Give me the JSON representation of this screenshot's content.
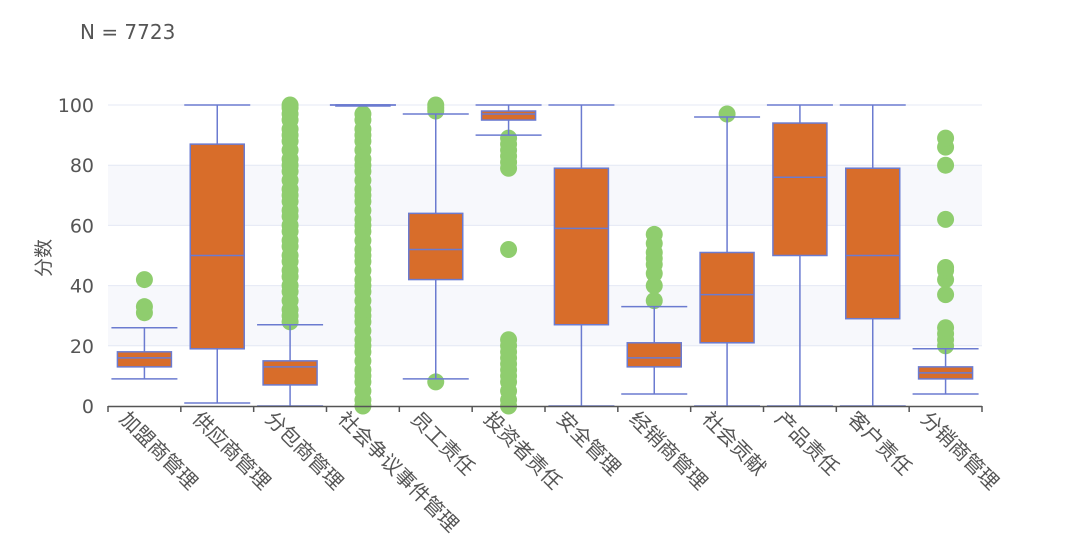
{
  "header": {
    "n_label": "N = 7723"
  },
  "chart_data": {
    "type": "boxplot",
    "ylabel": "分数",
    "ylim": [
      0,
      100
    ],
    "y_ticks": [
      0,
      20,
      40,
      60,
      80,
      100
    ],
    "grid": true,
    "colors": {
      "box_fill": "#d86d2a",
      "box_stroke": "#6b7bd0",
      "outlier": "#8fcd6e",
      "band": "#f7f8fc",
      "grid": "#e4e8f4",
      "axis": "#555555"
    },
    "categories": [
      "加盟商管理",
      "供应商管理",
      "分包商管理",
      "社会争议事件管理",
      "员工责任",
      "投资者责任",
      "安全管理",
      "经销商管理",
      "社会贡献",
      "产品责任",
      "客户责任",
      "分销商管理"
    ],
    "boxes": [
      {
        "min": 9,
        "q1": 13,
        "median": 16,
        "q3": 18,
        "max": 26,
        "outliers": [
          31,
          33,
          42
        ]
      },
      {
        "min": 1,
        "q1": 19,
        "median": 50,
        "q3": 87,
        "max": 100,
        "outliers": []
      },
      {
        "min": 0,
        "q1": 7,
        "median": 13,
        "q3": 15,
        "max": 27,
        "outliers": [
          28,
          30,
          32,
          35,
          38,
          40,
          43,
          45,
          48,
          50,
          53,
          55,
          58,
          60,
          63,
          65,
          68,
          70,
          72,
          75,
          78,
          80,
          82,
          85,
          88,
          90,
          92,
          95,
          97,
          99,
          100
        ]
      },
      {
        "min": 100,
        "q1": 100,
        "median": 100,
        "q3": 100,
        "max": 100,
        "outliers": [
          0,
          2,
          5,
          8,
          10,
          12,
          15,
          18,
          20,
          22,
          25,
          28,
          30,
          32,
          35,
          38,
          40,
          42,
          45,
          48,
          50,
          52,
          55,
          58,
          60,
          62,
          65,
          68,
          70,
          72,
          75,
          78,
          80,
          82,
          85,
          88,
          90,
          92,
          95,
          97
        ]
      },
      {
        "min": 9,
        "q1": 42,
        "median": 52,
        "q3": 64,
        "max": 97,
        "outliers": [
          8,
          98,
          99,
          100
        ]
      },
      {
        "min": 90,
        "q1": 95,
        "median": 97,
        "q3": 98,
        "max": 100,
        "outliers": [
          0,
          2,
          5,
          8,
          10,
          12,
          14,
          16,
          18,
          20,
          22,
          52,
          79,
          81,
          83,
          85,
          87,
          89
        ]
      },
      {
        "min": 0,
        "q1": 27,
        "median": 59,
        "q3": 79,
        "max": 100,
        "outliers": []
      },
      {
        "min": 4,
        "q1": 13,
        "median": 16,
        "q3": 21,
        "max": 33,
        "outliers": [
          35,
          40,
          44,
          47,
          49,
          51,
          54,
          57
        ]
      },
      {
        "min": 0,
        "q1": 21,
        "median": 37,
        "q3": 51,
        "max": 96,
        "outliers": [
          97
        ]
      },
      {
        "min": 0,
        "q1": 50,
        "median": 76,
        "q3": 94,
        "max": 100,
        "outliers": []
      },
      {
        "min": 0,
        "q1": 29,
        "median": 50,
        "q3": 79,
        "max": 100,
        "outliers": []
      },
      {
        "min": 4,
        "q1": 9,
        "median": 11,
        "q3": 13,
        "max": 19,
        "outliers": [
          20,
          22,
          24,
          26,
          37,
          42,
          45,
          46,
          62,
          80,
          86,
          89
        ]
      }
    ]
  }
}
